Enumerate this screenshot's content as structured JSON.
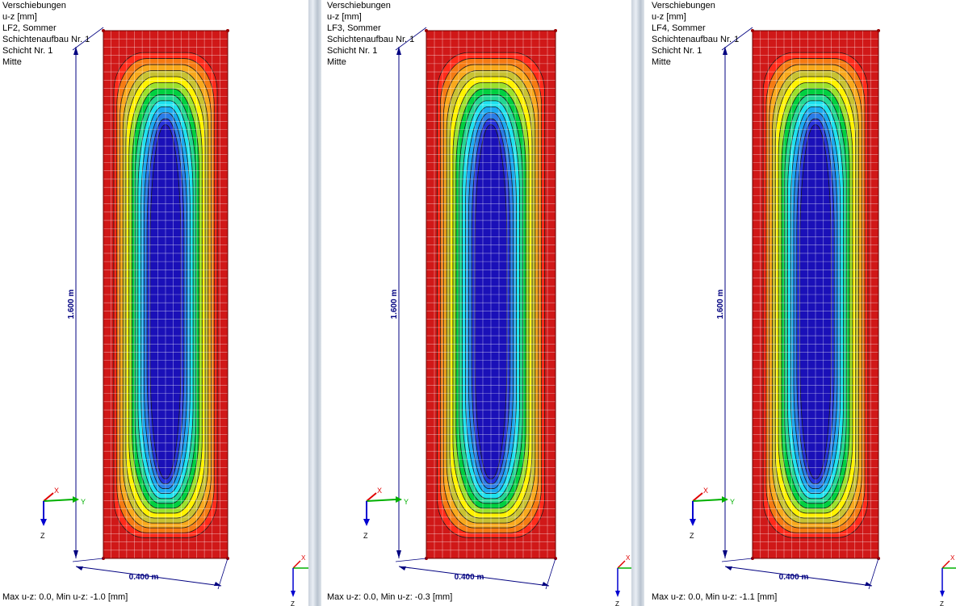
{
  "panels": [
    {
      "info": [
        "Verschiebungen",
        "u-z [mm]",
        "LF2, Sommer",
        "Schichtenaufbau Nr. 1",
        "Schicht Nr. 1",
        "Mitte"
      ],
      "footer": "Max u-z: 0.0, Min u-z: -1.0 [mm]",
      "height_label": "1.600 m",
      "width_label": "0.400 m",
      "axes": {
        "x": "X",
        "y": "Y",
        "z": "Z"
      }
    },
    {
      "info": [
        "Verschiebungen",
        "u-z [mm]",
        "LF3, Sommer",
        "Schichtenaufbau Nr. 1",
        "Schicht Nr. 1",
        "Mitte"
      ],
      "footer": "Max u-z: 0.0, Min u-z: -0.3 [mm]",
      "height_label": "1.600 m",
      "width_label": "0.400 m",
      "axes": {
        "x": "X",
        "y": "Y",
        "z": "Z"
      }
    },
    {
      "info": [
        "Verschiebungen",
        "u-z [mm]",
        "LF4, Sommer",
        "Schichtenaufbau Nr. 1",
        "Schicht Nr. 1",
        "Mitte"
      ],
      "footer": "Max u-z: 0.0, Min u-z: -1.1 [mm]",
      "height_label": "1.600 m",
      "width_label": "0.400 m",
      "axes": {
        "x": "X",
        "y": "Y",
        "z": "Z"
      }
    }
  ],
  "colors": {
    "contour_bands": [
      "#d01818",
      "#ff2a1a",
      "#f57a12",
      "#f8a81c",
      "#c8c232",
      "#fff200",
      "#9be02c",
      "#00d040",
      "#22d692",
      "#1ee2ee",
      "#1aa8f0",
      "#2a7ce6",
      "#2430d8",
      "#1a10b8"
    ],
    "dimension": "#000080",
    "axis_x": "#e00000",
    "axis_y": "#00b000",
    "axis_z": "#0000d0"
  }
}
